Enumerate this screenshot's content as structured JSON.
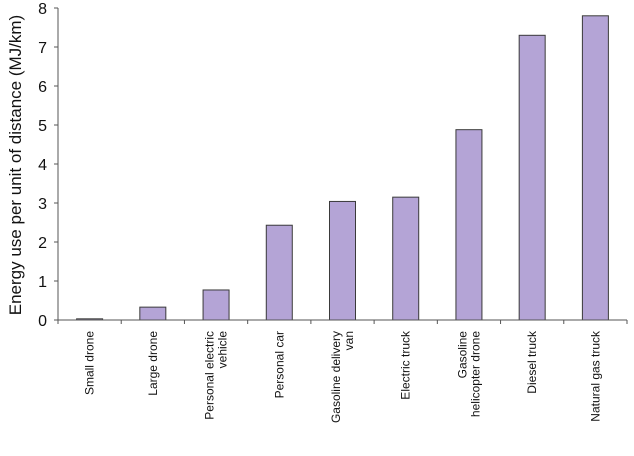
{
  "chart_data": {
    "type": "bar",
    "title": "",
    "xlabel": "",
    "ylabel": "Energy use per unit of distance (MJ/km)",
    "categories": [
      [
        "Small drone"
      ],
      [
        "Large drone"
      ],
      [
        "Personal electric",
        "vehicle"
      ],
      [
        "Personal car"
      ],
      [
        "Gasoline delivery",
        "van"
      ],
      [
        "Electric truck"
      ],
      [
        "Gasoline",
        "helicopter drone"
      ],
      [
        "Diesel truck"
      ],
      [
        "Natural gas truck"
      ]
    ],
    "values": [
      0.03,
      0.33,
      0.77,
      2.43,
      3.04,
      3.15,
      4.88,
      7.3,
      7.8
    ],
    "ylim": [
      0,
      8
    ],
    "yticks": [
      0,
      1,
      2,
      3,
      4,
      5,
      6,
      7,
      8
    ],
    "grid": false,
    "legend": "none",
    "colors": {
      "bar_fill": "#b4a4d6",
      "bar_stroke": "#3a3a3a",
      "axis": "#555555"
    }
  }
}
